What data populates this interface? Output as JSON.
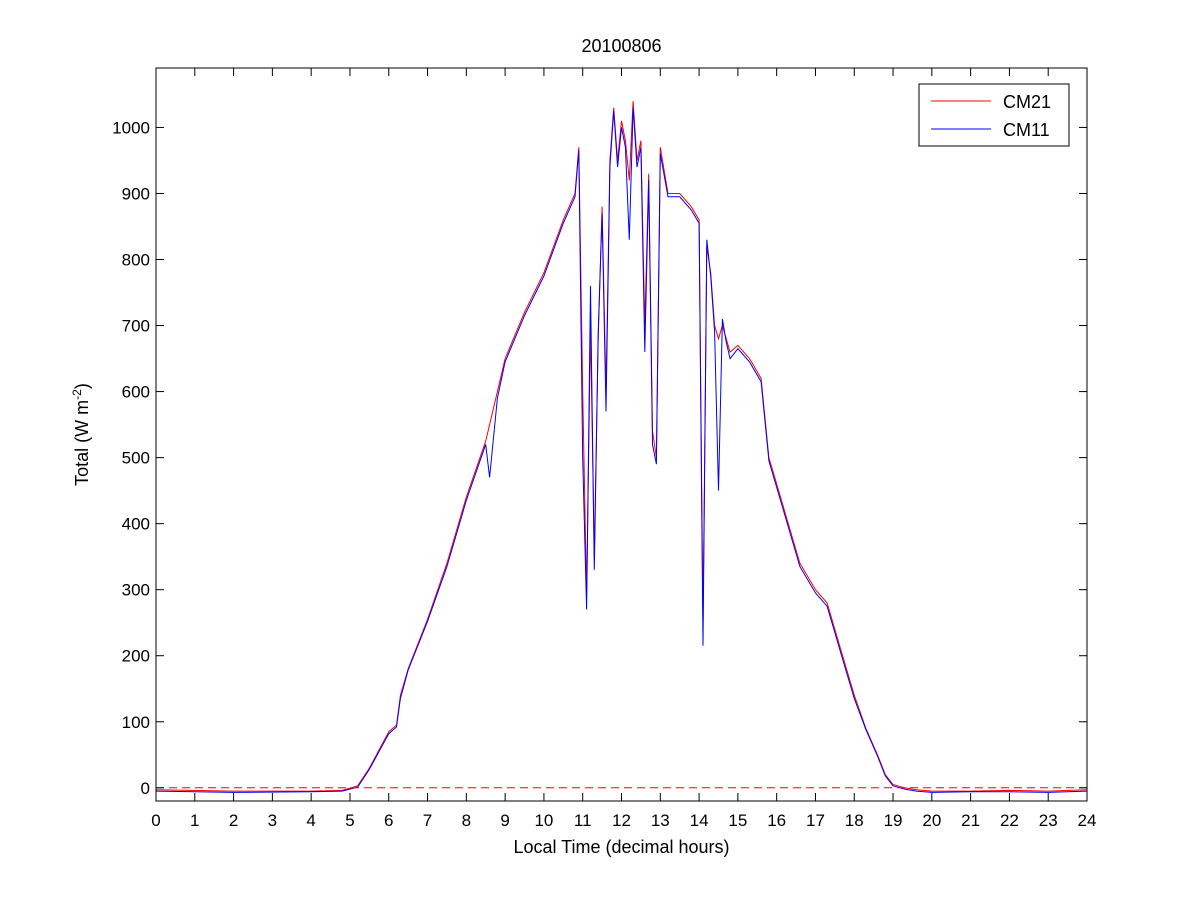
{
  "chart_data": {
    "type": "line",
    "title": "20100806",
    "xlabel": "Local Time (decimal hours)",
    "ylabel_main": "Total (W m",
    "ylabel_sup": "-2",
    "ylabel_close": ")",
    "xlim": [
      0,
      24
    ],
    "ylim": [
      -20,
      1090
    ],
    "xticks": [
      0,
      1,
      2,
      3,
      4,
      5,
      6,
      7,
      8,
      9,
      10,
      11,
      12,
      13,
      14,
      15,
      16,
      17,
      18,
      19,
      20,
      21,
      22,
      23,
      24
    ],
    "yticks": [
      0,
      100,
      200,
      300,
      400,
      500,
      600,
      700,
      800,
      900,
      1000
    ],
    "reference_line": {
      "y": 0,
      "style": "dashed",
      "color": "#ff0000"
    },
    "legend": {
      "placement": "top-right"
    },
    "series": [
      {
        "name": "CM21",
        "color": "#ff0000",
        "x": [
          0,
          2,
          4,
          4.8,
          5.2,
          5.5,
          6.0,
          6.2,
          6.3,
          6.5,
          7.0,
          7.5,
          8.0,
          8.5,
          8.6,
          8.8,
          9.0,
          9.5,
          10.0,
          10.5,
          10.8,
          10.9,
          11.0,
          11.1,
          11.2,
          11.3,
          11.4,
          11.5,
          11.6,
          11.7,
          11.8,
          11.9,
          12.0,
          12.1,
          12.2,
          12.3,
          12.4,
          12.5,
          12.6,
          12.7,
          12.8,
          12.9,
          13.0,
          13.2,
          13.5,
          13.8,
          14.0,
          14.1,
          14.2,
          14.3,
          14.4,
          14.5,
          14.6,
          14.7,
          14.8,
          15.0,
          15.3,
          15.6,
          15.8,
          16.0,
          16.3,
          16.6,
          17.0,
          17.3,
          17.6,
          18.0,
          18.3,
          18.6,
          18.8,
          19.0,
          19.3,
          19.6,
          20.0,
          21.0,
          22.0,
          23.0,
          24.0
        ],
        "values": [
          -3,
          -5,
          -5,
          -4,
          3,
          30,
          85,
          95,
          140,
          180,
          255,
          340,
          440,
          525,
          550,
          600,
          650,
          720,
          780,
          860,
          900,
          970,
          600,
          290,
          700,
          350,
          680,
          880,
          600,
          950,
          1030,
          950,
          1010,
          980,
          920,
          1040,
          950,
          980,
          700,
          930,
          540,
          500,
          970,
          900,
          900,
          880,
          860,
          250,
          820,
          780,
          700,
          680,
          700,
          680,
          660,
          670,
          650,
          620,
          500,
          460,
          400,
          340,
          300,
          280,
          220,
          140,
          90,
          50,
          20,
          5,
          0,
          -3,
          -5,
          -5,
          -4,
          -5,
          -3
        ]
      },
      {
        "name": "CM11",
        "color": "#0000ff",
        "x": [
          0,
          2,
          4,
          4.8,
          5.2,
          5.5,
          6.0,
          6.2,
          6.3,
          6.5,
          7.0,
          7.5,
          8.0,
          8.5,
          8.6,
          8.8,
          9.0,
          9.5,
          10.0,
          10.5,
          10.8,
          10.9,
          11.0,
          11.1,
          11.2,
          11.3,
          11.4,
          11.5,
          11.6,
          11.7,
          11.8,
          11.9,
          12.0,
          12.1,
          12.2,
          12.3,
          12.4,
          12.5,
          12.6,
          12.7,
          12.8,
          12.9,
          13.0,
          13.2,
          13.5,
          13.8,
          14.0,
          14.1,
          14.2,
          14.3,
          14.4,
          14.5,
          14.6,
          14.7,
          14.8,
          15.0,
          15.3,
          15.6,
          15.8,
          16.0,
          16.3,
          16.6,
          17.0,
          17.3,
          17.6,
          18.0,
          18.3,
          18.6,
          18.8,
          19.0,
          19.3,
          19.6,
          20.0,
          21.0,
          22.0,
          23.0,
          24.0
        ],
        "values": [
          -5,
          -7,
          -6,
          -5,
          1,
          28,
          82,
          92,
          135,
          178,
          252,
          335,
          435,
          520,
          470,
          590,
          645,
          715,
          775,
          855,
          895,
          965,
          500,
          270,
          760,
          330,
          690,
          870,
          570,
          940,
          1025,
          940,
          1000,
          970,
          830,
          1030,
          940,
          970,
          660,
          920,
          520,
          490,
          960,
          895,
          895,
          875,
          855,
          215,
          830,
          775,
          690,
          450,
          710,
          675,
          650,
          665,
          645,
          615,
          495,
          455,
          395,
          335,
          295,
          275,
          215,
          135,
          88,
          48,
          18,
          3,
          -2,
          -5,
          -7,
          -6,
          -6,
          -7,
          -5
        ]
      }
    ]
  }
}
